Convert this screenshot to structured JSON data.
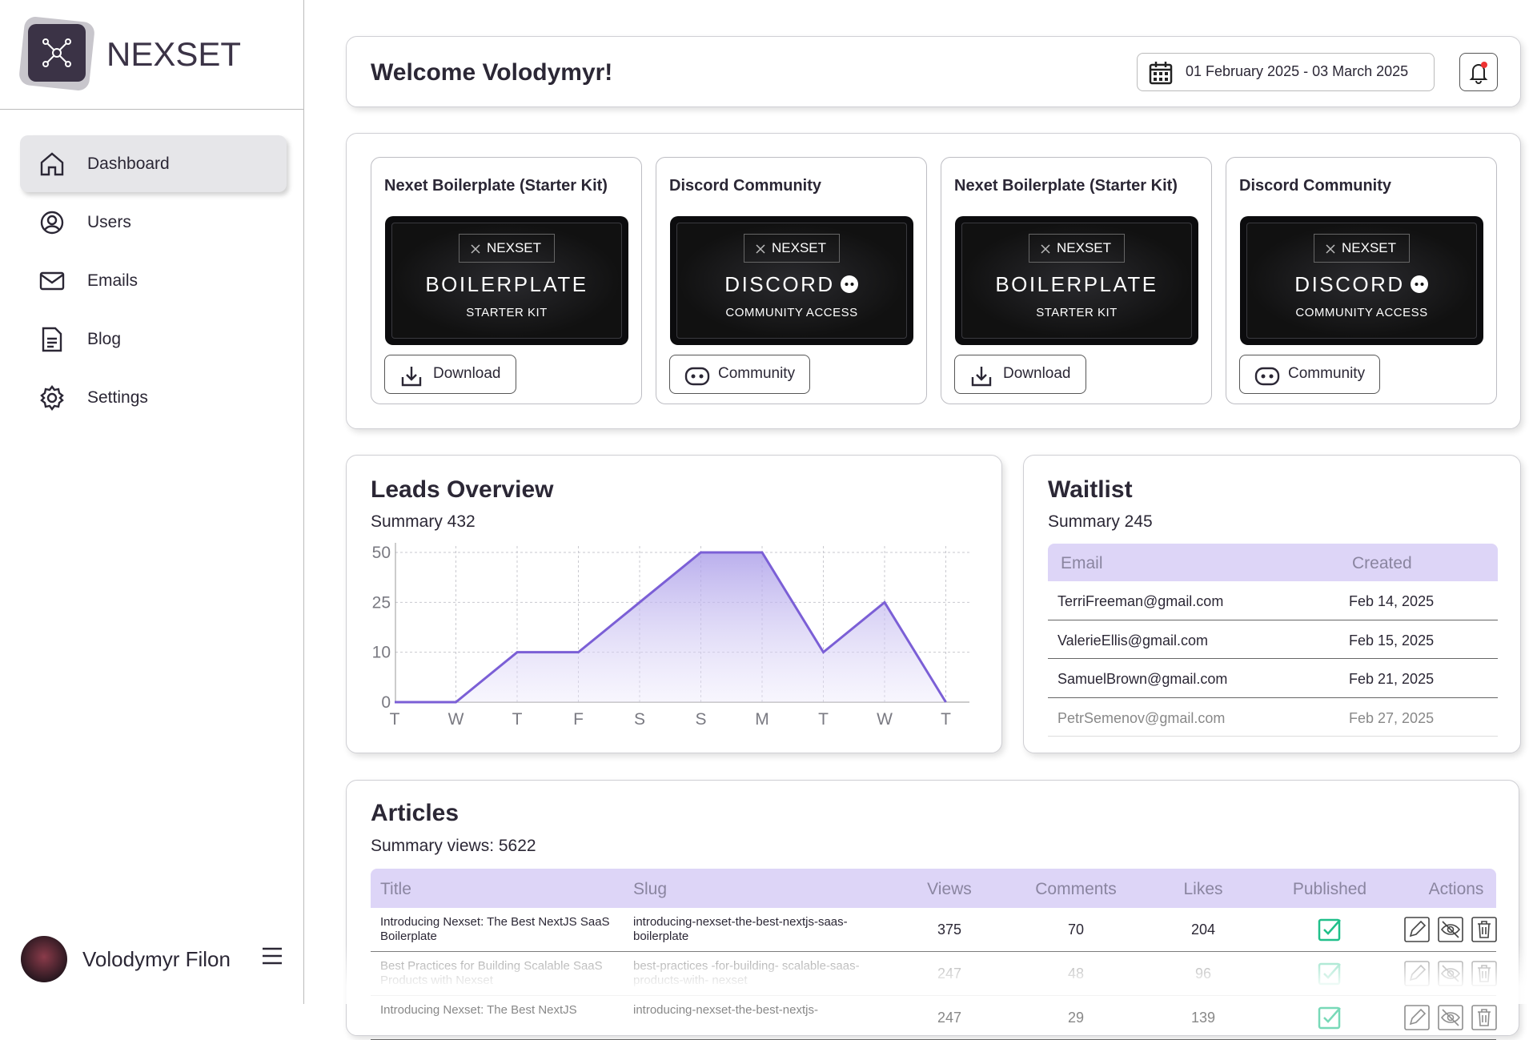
{
  "sidebar": {
    "brand": "NEXSET",
    "nav": [
      "Dashboard",
      "Users",
      "Emails",
      "Blog",
      "Settings"
    ],
    "user": "Volodymyr Filon"
  },
  "header": {
    "title": "Welcome Volodymyr!",
    "date_range": "01 February 2025 - 03 March 2025"
  },
  "cards": [
    {
      "title": "Nexet Boilerplate (Starter Kit)",
      "badge": "NEXSET",
      "heading": "BOILERPLATE",
      "subheading": "STARTER KIT",
      "button": "Download"
    },
    {
      "title": "Discord Community",
      "badge": "NEXSET",
      "heading": "DISCORD",
      "subheading": "COMMUNITY ACCESS",
      "button": "Community"
    },
    {
      "title": "Nexet Boilerplate (Starter Kit)",
      "badge": "NEXSET",
      "heading": "BOILERPLATE",
      "subheading": "STARTER KIT",
      "button": "Download"
    },
    {
      "title": "Discord Community",
      "badge": "NEXSET",
      "heading": "DISCORD",
      "subheading": "COMMUNITY ACCESS",
      "button": "Community"
    }
  ],
  "leads": {
    "title": "Leads Overview",
    "summary": "Summary 432",
    "chart": {
      "type": "line",
      "categories": [
        "T",
        "W",
        "T",
        "F",
        "S",
        "S",
        "M",
        "T",
        "W",
        "T"
      ],
      "values": [
        0,
        0,
        10,
        10,
        25,
        50,
        50,
        10,
        25,
        0
      ],
      "yticks": [
        0,
        10,
        25,
        50
      ],
      "grid": true,
      "color": "#7b5fd6"
    }
  },
  "waitlist": {
    "title": "Waitlist",
    "summary": "Summary 245",
    "columns": [
      "Email",
      "Created"
    ],
    "rows": [
      [
        "TerriFreeman@gmail.com",
        "Feb 14, 2025"
      ],
      [
        "ValerieEllis@gmail.com",
        "Feb 15, 2025"
      ],
      [
        "SamuelBrown@gmail.com",
        "Feb 21, 2025"
      ],
      [
        "PetrSemenov@gmail.com",
        "Feb 27, 2025"
      ]
    ]
  },
  "articles": {
    "title": "Articles",
    "summary": "Summary views: 5622",
    "columns": [
      "Title",
      "Slug",
      "Views",
      "Comments",
      "Likes",
      "Published",
      "Actions"
    ],
    "rows": [
      [
        "Introducing Nexset: The Best NextJS SaaS Boilerplate",
        "introducing-nexset-the-best-nextjs-saas-boilerplate",
        "375",
        "70",
        "204"
      ],
      [
        "Best Practices for Building Scalable SaaS Products with Nexset",
        "best-practices -for-building- scalable-saas-products-with- nexset",
        "247",
        "48",
        "96"
      ],
      [
        "Introducing Nexset: The Best NextJS",
        "introducing-nexset-the-best-nextjs-",
        "247",
        "29",
        "139"
      ]
    ]
  }
}
